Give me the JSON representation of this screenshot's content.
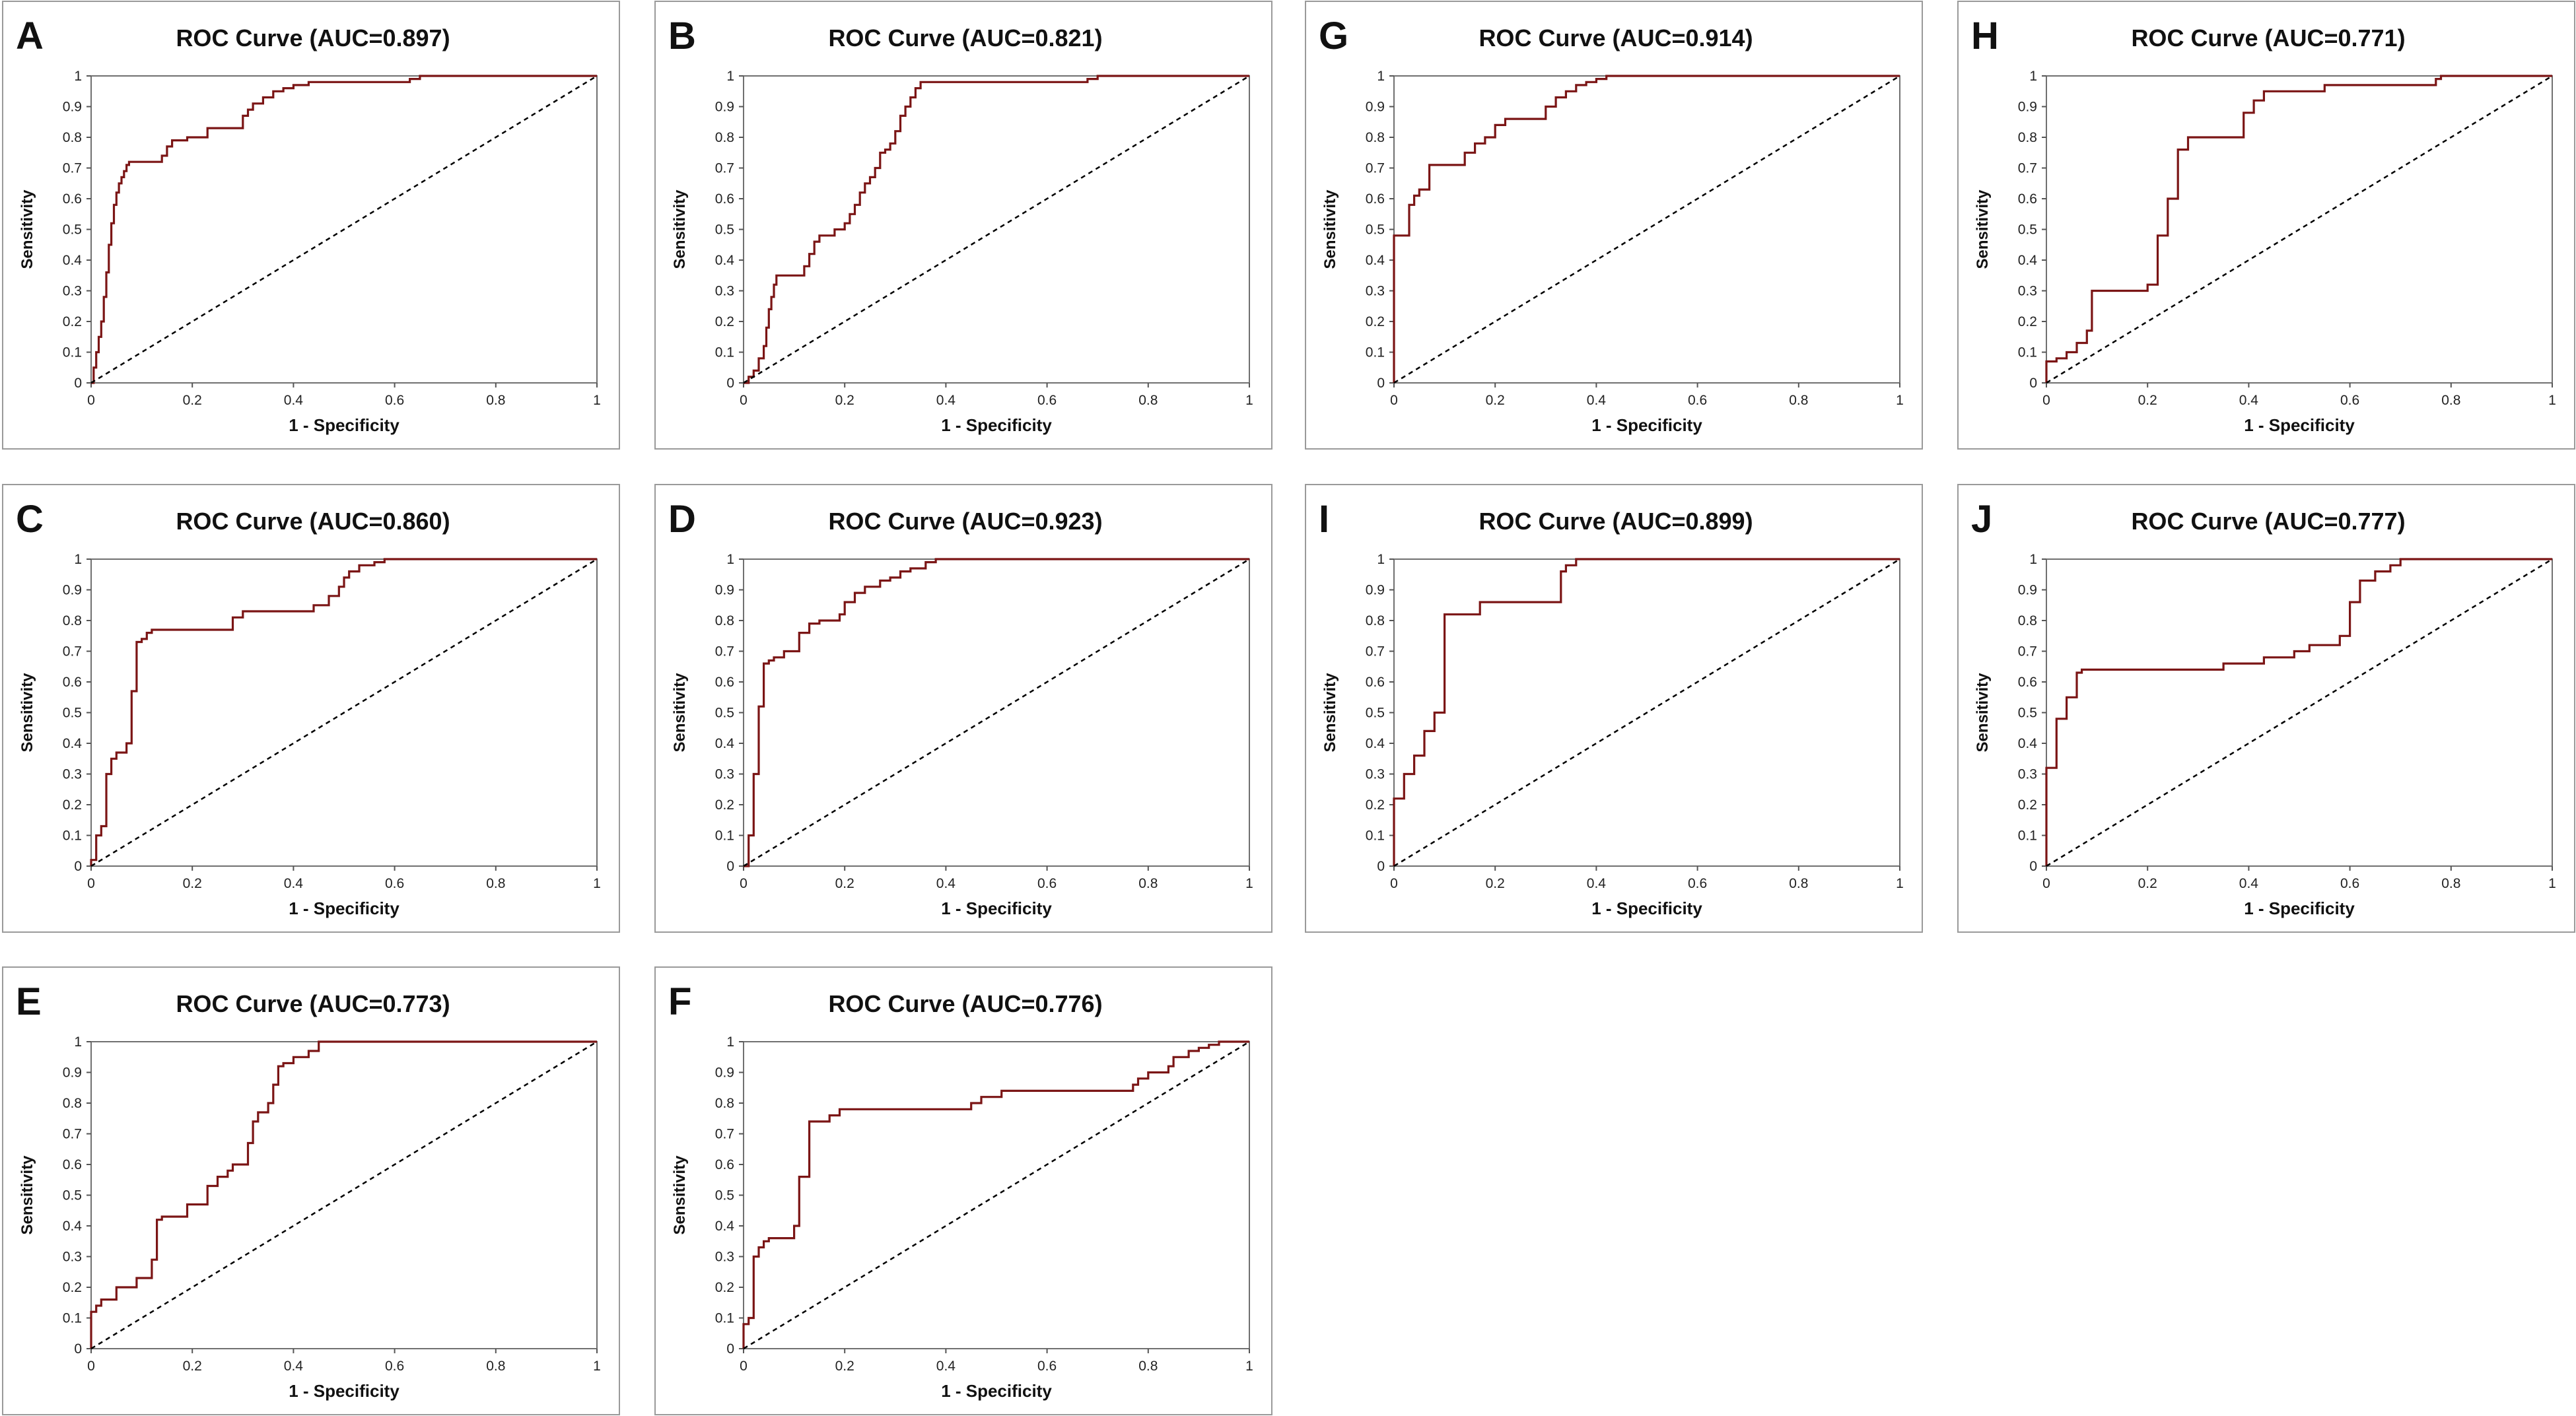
{
  "figure": {
    "panels": [
      {
        "letter": "A",
        "chart_index": 0
      },
      {
        "letter": "B",
        "chart_index": 1
      },
      {
        "letter": "G",
        "chart_index": 2
      },
      {
        "letter": "H",
        "chart_index": 3
      },
      {
        "letter": "C",
        "chart_index": 4
      },
      {
        "letter": "D",
        "chart_index": 5
      },
      {
        "letter": "I",
        "chart_index": 6
      },
      {
        "letter": "J",
        "chart_index": 7
      },
      {
        "letter": "E",
        "chart_index": 8
      },
      {
        "letter": "F",
        "chart_index": 9
      }
    ]
  },
  "chart_data": [
    {
      "type": "line",
      "title": "ROC Curve (AUC=0.897)",
      "xlabel": "1 - Specificity",
      "ylabel": "Sensitivity",
      "xlim": [
        0,
        1
      ],
      "ylim": [
        0,
        1
      ],
      "xticks": [
        "0",
        "0.2",
        "0.4",
        "0.6",
        "0.8",
        "1"
      ],
      "yticks": [
        "0",
        "0.1",
        "0.2",
        "0.3",
        "0.4",
        "0.5",
        "0.6",
        "0.7",
        "0.8",
        "0.9",
        "1"
      ],
      "series": [
        {
          "name": "ROC",
          "color": "#7b1515",
          "step": true,
          "x": [
            0,
            0.005,
            0.01,
            0.015,
            0.02,
            0.025,
            0.03,
            0.035,
            0.04,
            0.045,
            0.05,
            0.055,
            0.06,
            0.065,
            0.07,
            0.075,
            0.08,
            0.14,
            0.15,
            0.16,
            0.19,
            0.23,
            0.3,
            0.31,
            0.32,
            0.34,
            0.36,
            0.38,
            0.4,
            0.43,
            0.63,
            0.65,
            1
          ],
          "y": [
            0,
            0.05,
            0.1,
            0.15,
            0.2,
            0.28,
            0.36,
            0.45,
            0.52,
            0.58,
            0.62,
            0.65,
            0.67,
            0.69,
            0.71,
            0.72,
            0.72,
            0.74,
            0.77,
            0.79,
            0.8,
            0.83,
            0.87,
            0.89,
            0.91,
            0.93,
            0.95,
            0.96,
            0.97,
            0.98,
            0.99,
            1,
            1
          ]
        },
        {
          "name": "reference",
          "color": "#000000",
          "dashed": true,
          "x": [
            0,
            1
          ],
          "y": [
            0,
            1
          ]
        }
      ]
    },
    {
      "type": "line",
      "title": "ROC Curve (AUC=0.821)",
      "xlabel": "1 - Specificity",
      "ylabel": "Sensitivity",
      "xlim": [
        0,
        1
      ],
      "ylim": [
        0,
        1
      ],
      "xticks": [
        "0",
        "0.2",
        "0.4",
        "0.6",
        "0.8",
        "1"
      ],
      "yticks": [
        "0",
        "0.1",
        "0.2",
        "0.3",
        "0.4",
        "0.5",
        "0.6",
        "0.7",
        "0.8",
        "0.9",
        "1"
      ],
      "series": [
        {
          "name": "ROC",
          "color": "#7b1515",
          "step": true,
          "x": [
            0,
            0.01,
            0.02,
            0.03,
            0.04,
            0.045,
            0.05,
            0.055,
            0.06,
            0.065,
            0.07,
            0.12,
            0.13,
            0.14,
            0.15,
            0.18,
            0.2,
            0.21,
            0.22,
            0.23,
            0.24,
            0.25,
            0.26,
            0.27,
            0.28,
            0.29,
            0.3,
            0.31,
            0.32,
            0.33,
            0.34,
            0.35,
            0.36,
            0.68,
            0.7,
            1
          ],
          "y": [
            0,
            0.02,
            0.04,
            0.08,
            0.12,
            0.18,
            0.24,
            0.28,
            0.32,
            0.35,
            0.35,
            0.38,
            0.42,
            0.46,
            0.48,
            0.5,
            0.52,
            0.55,
            0.58,
            0.62,
            0.65,
            0.67,
            0.7,
            0.75,
            0.76,
            0.78,
            0.82,
            0.87,
            0.9,
            0.93,
            0.96,
            0.98,
            0.98,
            0.99,
            1,
            1
          ]
        },
        {
          "name": "reference",
          "color": "#000000",
          "dashed": true,
          "x": [
            0,
            1
          ],
          "y": [
            0,
            1
          ]
        }
      ]
    },
    {
      "type": "line",
      "title": "ROC Curve (AUC=0.914)",
      "xlabel": "1 - Specificity",
      "ylabel": "Sensitivity",
      "xlim": [
        0,
        1
      ],
      "ylim": [
        0,
        1
      ],
      "xticks": [
        "0",
        "0.2",
        "0.4",
        "0.6",
        "0.8",
        "1"
      ],
      "yticks": [
        "0",
        "0.1",
        "0.2",
        "0.3",
        "0.4",
        "0.5",
        "0.6",
        "0.7",
        "0.8",
        "0.9",
        "1"
      ],
      "series": [
        {
          "name": "ROC",
          "color": "#7b1515",
          "step": true,
          "x": [
            0,
            0.02,
            0.03,
            0.04,
            0.05,
            0.07,
            0.14,
            0.16,
            0.18,
            0.2,
            0.22,
            0.3,
            0.32,
            0.34,
            0.36,
            0.38,
            0.4,
            0.42,
            0.43,
            1
          ],
          "y": [
            0.48,
            0.48,
            0.58,
            0.61,
            0.63,
            0.71,
            0.75,
            0.78,
            0.8,
            0.84,
            0.86,
            0.9,
            0.93,
            0.95,
            0.97,
            0.98,
            0.99,
            1,
            1,
            1
          ]
        },
        {
          "name": "reference",
          "color": "#000000",
          "dashed": true,
          "x": [
            0,
            1
          ],
          "y": [
            0,
            1
          ]
        }
      ]
    },
    {
      "type": "line",
      "title": "ROC Curve (AUC=0.771)",
      "xlabel": "1 - Specificity",
      "ylabel": "Sensitivity",
      "xlim": [
        0,
        1
      ],
      "ylim": [
        0,
        1
      ],
      "xticks": [
        "0",
        "0.2",
        "0.4",
        "0.6",
        "0.8",
        "1"
      ],
      "yticks": [
        "0",
        "0.1",
        "0.2",
        "0.3",
        "0.4",
        "0.5",
        "0.6",
        "0.7",
        "0.8",
        "0.9",
        "1"
      ],
      "series": [
        {
          "name": "ROC",
          "color": "#7b1515",
          "step": true,
          "x": [
            0,
            0.02,
            0.04,
            0.06,
            0.08,
            0.09,
            0.2,
            0.22,
            0.24,
            0.26,
            0.28,
            0.39,
            0.41,
            0.43,
            0.55,
            0.77,
            0.78,
            1
          ],
          "y": [
            0.07,
            0.08,
            0.1,
            0.13,
            0.17,
            0.3,
            0.32,
            0.48,
            0.6,
            0.76,
            0.8,
            0.88,
            0.92,
            0.95,
            0.97,
            0.99,
            1,
            1
          ]
        },
        {
          "name": "reference",
          "color": "#000000",
          "dashed": true,
          "x": [
            0,
            1
          ],
          "y": [
            0,
            1
          ]
        }
      ]
    },
    {
      "type": "line",
      "title": "ROC Curve (AUC=0.860)",
      "xlabel": "1 - Specificity",
      "ylabel": "Sensitivity",
      "xlim": [
        0,
        1
      ],
      "ylim": [
        0,
        1
      ],
      "xticks": [
        "0",
        "0.2",
        "0.4",
        "0.6",
        "0.8",
        "1"
      ],
      "yticks": [
        "0",
        "0.1",
        "0.2",
        "0.3",
        "0.4",
        "0.5",
        "0.6",
        "0.7",
        "0.8",
        "0.9",
        "1"
      ],
      "series": [
        {
          "name": "ROC",
          "color": "#7b1515",
          "step": true,
          "x": [
            0,
            0.01,
            0.02,
            0.03,
            0.04,
            0.05,
            0.06,
            0.07,
            0.08,
            0.09,
            0.1,
            0.11,
            0.12,
            0.28,
            0.3,
            0.44,
            0.47,
            0.49,
            0.5,
            0.51,
            0.53,
            0.56,
            0.58,
            1
          ],
          "y": [
            0.02,
            0.1,
            0.13,
            0.3,
            0.35,
            0.37,
            0.37,
            0.4,
            0.57,
            0.73,
            0.74,
            0.76,
            0.77,
            0.81,
            0.83,
            0.85,
            0.88,
            0.91,
            0.94,
            0.96,
            0.98,
            0.99,
            1,
            1
          ]
        },
        {
          "name": "reference",
          "color": "#000000",
          "dashed": true,
          "x": [
            0,
            1
          ],
          "y": [
            0,
            1
          ]
        }
      ]
    },
    {
      "type": "line",
      "title": "ROC Curve (AUC=0.923)",
      "xlabel": "1 - Specificity",
      "ylabel": "Sensitivity",
      "xlim": [
        0,
        1
      ],
      "ylim": [
        0,
        1
      ],
      "xticks": [
        "0",
        "0.2",
        "0.4",
        "0.6",
        "0.8",
        "1"
      ],
      "yticks": [
        "0",
        "0.1",
        "0.2",
        "0.3",
        "0.4",
        "0.5",
        "0.6",
        "0.7",
        "0.8",
        "0.9",
        "1"
      ],
      "series": [
        {
          "name": "ROC",
          "color": "#7b1515",
          "step": true,
          "x": [
            0,
            0.01,
            0.02,
            0.03,
            0.04,
            0.05,
            0.06,
            0.08,
            0.11,
            0.13,
            0.15,
            0.17,
            0.19,
            0.2,
            0.22,
            0.24,
            0.27,
            0.29,
            0.31,
            0.33,
            0.36,
            0.38,
            1
          ],
          "y": [
            0,
            0.1,
            0.3,
            0.52,
            0.66,
            0.67,
            0.68,
            0.7,
            0.76,
            0.79,
            0.8,
            0.8,
            0.82,
            0.86,
            0.89,
            0.91,
            0.93,
            0.94,
            0.96,
            0.97,
            0.99,
            1,
            1
          ]
        },
        {
          "name": "reference",
          "color": "#000000",
          "dashed": true,
          "x": [
            0,
            1
          ],
          "y": [
            0,
            1
          ]
        }
      ]
    },
    {
      "type": "line",
      "title": "ROC Curve (AUC=0.899)",
      "xlabel": "1 - Specificity",
      "ylabel": "Sensitivity",
      "xlim": [
        0,
        1
      ],
      "ylim": [
        0,
        1
      ],
      "xticks": [
        "0",
        "0.2",
        "0.4",
        "0.6",
        "0.8",
        "1"
      ],
      "yticks": [
        "0",
        "0.1",
        "0.2",
        "0.3",
        "0.4",
        "0.5",
        "0.6",
        "0.7",
        "0.8",
        "0.9",
        "1"
      ],
      "series": [
        {
          "name": "ROC",
          "color": "#7b1515",
          "step": true,
          "x": [
            0,
            0.02,
            0.04,
            0.06,
            0.08,
            0.1,
            0.11,
            0.17,
            0.33,
            0.34,
            0.36,
            0.37,
            1
          ],
          "y": [
            0.22,
            0.3,
            0.36,
            0.44,
            0.5,
            0.82,
            0.82,
            0.86,
            0.96,
            0.98,
            1,
            1,
            1
          ]
        },
        {
          "name": "reference",
          "color": "#000000",
          "dashed": true,
          "x": [
            0,
            1
          ],
          "y": [
            0,
            1
          ]
        }
      ]
    },
    {
      "type": "line",
      "title": "ROC Curve (AUC=0.777)",
      "xlabel": "1 - Specificity",
      "ylabel": "Sensitivity",
      "xlim": [
        0,
        1
      ],
      "ylim": [
        0,
        1
      ],
      "xticks": [
        "0",
        "0.2",
        "0.4",
        "0.6",
        "0.8",
        "1"
      ],
      "yticks": [
        "0",
        "0.1",
        "0.2",
        "0.3",
        "0.4",
        "0.5",
        "0.6",
        "0.7",
        "0.8",
        "0.9",
        "1"
      ],
      "series": [
        {
          "name": "ROC",
          "color": "#7b1515",
          "step": true,
          "x": [
            0,
            0.02,
            0.04,
            0.06,
            0.07,
            0.35,
            0.43,
            0.49,
            0.52,
            0.58,
            0.6,
            0.62,
            0.65,
            0.68,
            0.7,
            1
          ],
          "y": [
            0.32,
            0.48,
            0.55,
            0.63,
            0.64,
            0.66,
            0.68,
            0.7,
            0.72,
            0.75,
            0.86,
            0.93,
            0.96,
            0.98,
            1,
            1
          ]
        },
        {
          "name": "reference",
          "color": "#000000",
          "dashed": true,
          "x": [
            0,
            1
          ],
          "y": [
            0,
            1
          ]
        }
      ]
    },
    {
      "type": "line",
      "title": "ROC Curve (AUC=0.773)",
      "xlabel": "1 - Specificity",
      "ylabel": "Sensitivity",
      "xlim": [
        0,
        1
      ],
      "ylim": [
        0,
        1
      ],
      "xticks": [
        "0",
        "0.2",
        "0.4",
        "0.6",
        "0.8",
        "1"
      ],
      "yticks": [
        "0",
        "0.1",
        "0.2",
        "0.3",
        "0.4",
        "0.5",
        "0.6",
        "0.7",
        "0.8",
        "0.9",
        "1"
      ],
      "series": [
        {
          "name": "ROC",
          "color": "#7b1515",
          "step": true,
          "x": [
            0,
            0.01,
            0.02,
            0.05,
            0.09,
            0.12,
            0.13,
            0.14,
            0.19,
            0.23,
            0.25,
            0.27,
            0.28,
            0.31,
            0.32,
            0.33,
            0.35,
            0.36,
            0.37,
            0.38,
            0.4,
            0.43,
            0.45,
            0.47,
            1
          ],
          "y": [
            0.12,
            0.14,
            0.16,
            0.2,
            0.23,
            0.29,
            0.42,
            0.43,
            0.47,
            0.53,
            0.56,
            0.58,
            0.6,
            0.67,
            0.74,
            0.77,
            0.8,
            0.86,
            0.92,
            0.93,
            0.95,
            0.97,
            1,
            1,
            1
          ]
        },
        {
          "name": "reference",
          "color": "#000000",
          "dashed": true,
          "x": [
            0,
            1
          ],
          "y": [
            0,
            1
          ]
        }
      ]
    },
    {
      "type": "line",
      "title": "ROC Curve (AUC=0.776)",
      "xlabel": "1 - Specificity",
      "ylabel": "Sensitivity",
      "xlim": [
        0,
        1
      ],
      "ylim": [
        0,
        1
      ],
      "xticks": [
        "0",
        "0.2",
        "0.4",
        "0.6",
        "0.8",
        "1"
      ],
      "yticks": [
        "0",
        "0.1",
        "0.2",
        "0.3",
        "0.4",
        "0.5",
        "0.6",
        "0.7",
        "0.8",
        "0.9",
        "1"
      ],
      "series": [
        {
          "name": "ROC",
          "color": "#7b1515",
          "step": true,
          "x": [
            0,
            0.01,
            0.02,
            0.03,
            0.04,
            0.05,
            0.06,
            0.1,
            0.11,
            0.13,
            0.14,
            0.17,
            0.19,
            0.45,
            0.47,
            0.51,
            0.77,
            0.78,
            0.8,
            0.84,
            0.85,
            0.88,
            0.9,
            0.92,
            0.94,
            1
          ],
          "y": [
            0.08,
            0.1,
            0.3,
            0.33,
            0.35,
            0.36,
            0.36,
            0.4,
            0.56,
            0.74,
            0.74,
            0.76,
            0.78,
            0.8,
            0.82,
            0.84,
            0.86,
            0.88,
            0.9,
            0.92,
            0.95,
            0.97,
            0.98,
            0.99,
            1,
            1
          ]
        },
        {
          "name": "reference",
          "color": "#000000",
          "dashed": true,
          "x": [
            0,
            1
          ],
          "y": [
            0,
            1
          ]
        }
      ]
    }
  ]
}
